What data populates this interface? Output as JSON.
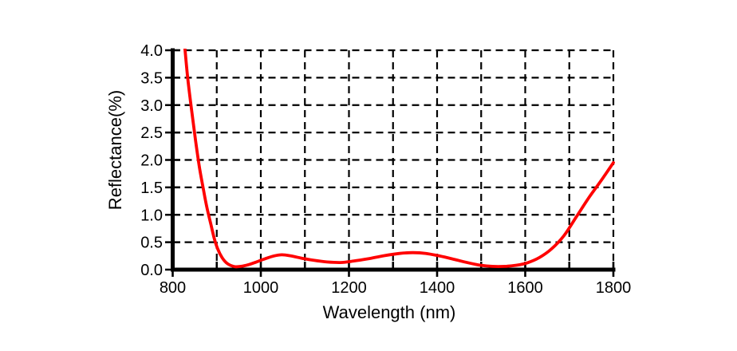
{
  "chart_data": {
    "type": "line",
    "title": "",
    "xlabel": "Wavelength (nm)",
    "ylabel": "Reflectance(%)",
    "xlim": [
      800,
      1800
    ],
    "ylim": [
      0.0,
      4.0
    ],
    "x_major_ticks": [
      800,
      1000,
      1200,
      1400,
      1600,
      1800
    ],
    "x_major_tick_labels": [
      "800",
      "1000",
      "1200",
      "1400",
      "1600",
      "1800"
    ],
    "x_minor_tick_step": 100,
    "y_ticks": [
      0.0,
      0.5,
      1.0,
      1.5,
      2.0,
      2.5,
      3.0,
      3.5,
      4.0
    ],
    "y_tick_labels": [
      "0.0",
      "0.5",
      "1.0",
      "1.5",
      "2.0",
      "2.5",
      "3.0",
      "3.5",
      "4.0"
    ],
    "grid": "dashed",
    "grid_x_step": 100,
    "grid_y_step": 0.5,
    "legend": "none",
    "colors": {
      "curve": "#ff0000",
      "axis": "#000000",
      "grid": "#000000",
      "background": "#ffffff"
    },
    "series": [
      {
        "name": "reflectance",
        "color": "#ff0000",
        "points": [
          [
            827,
            4.1
          ],
          [
            834,
            3.5
          ],
          [
            843,
            2.9
          ],
          [
            852,
            2.35
          ],
          [
            861,
            1.85
          ],
          [
            870,
            1.45
          ],
          [
            878,
            1.12
          ],
          [
            886,
            0.85
          ],
          [
            894,
            0.58
          ],
          [
            902,
            0.38
          ],
          [
            912,
            0.22
          ],
          [
            924,
            0.11
          ],
          [
            940,
            0.055
          ],
          [
            955,
            0.06
          ],
          [
            972,
            0.09
          ],
          [
            990,
            0.14
          ],
          [
            1010,
            0.2
          ],
          [
            1030,
            0.25
          ],
          [
            1048,
            0.27
          ],
          [
            1068,
            0.25
          ],
          [
            1092,
            0.21
          ],
          [
            1120,
            0.17
          ],
          [
            1150,
            0.14
          ],
          [
            1180,
            0.13
          ],
          [
            1210,
            0.155
          ],
          [
            1245,
            0.2
          ],
          [
            1280,
            0.255
          ],
          [
            1315,
            0.295
          ],
          [
            1345,
            0.31
          ],
          [
            1375,
            0.295
          ],
          [
            1405,
            0.25
          ],
          [
            1435,
            0.195
          ],
          [
            1465,
            0.135
          ],
          [
            1495,
            0.085
          ],
          [
            1525,
            0.06
          ],
          [
            1555,
            0.06
          ],
          [
            1580,
            0.08
          ],
          [
            1605,
            0.125
          ],
          [
            1632,
            0.22
          ],
          [
            1660,
            0.38
          ],
          [
            1688,
            0.62
          ],
          [
            1715,
            0.95
          ],
          [
            1745,
            1.32
          ],
          [
            1772,
            1.62
          ],
          [
            1800,
            1.95
          ]
        ]
      }
    ]
  }
}
